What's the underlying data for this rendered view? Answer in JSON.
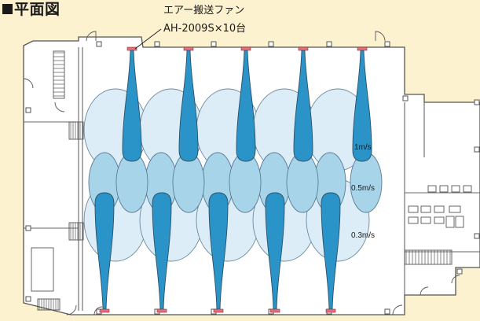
{
  "title": "平面図",
  "callout": {
    "line1": "エアー搬送ファン",
    "line2": "AH-2009S×10台"
  },
  "velocity_zones": [
    {
      "label": "1m/s",
      "color": "#2a94c9"
    },
    {
      "label": "0.5m/s",
      "color": "#a8d4ea"
    },
    {
      "label": "0.3m/s",
      "color": "#dcedf7"
    }
  ],
  "fan_count": 10,
  "colors": {
    "background": "#fdf2cf",
    "building": "#ffffff",
    "fan_marker": "#e0707a",
    "wall": "#555555"
  }
}
